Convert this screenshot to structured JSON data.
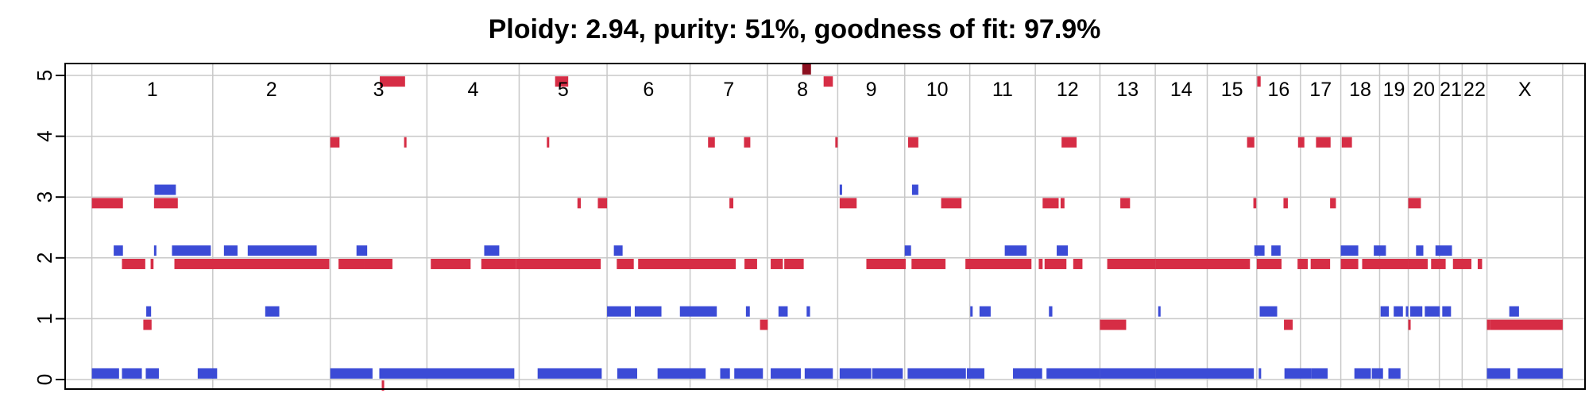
{
  "chart_data": {
    "type": "scatter",
    "title": "Ploidy: 2.94, purity: 51%, goodness of fit: 97.9%",
    "xlabel": "",
    "ylabel": "",
    "ylim": [
      0,
      5
    ],
    "yticks": [
      "0",
      "1",
      "2",
      "3",
      "4",
      "5"
    ],
    "grid": true,
    "chromosomes": [
      {
        "name": "1",
        "start": 0,
        "end": 249
      },
      {
        "name": "2",
        "start": 249,
        "end": 491
      },
      {
        "name": "3",
        "start": 491,
        "end": 690
      },
      {
        "name": "4",
        "start": 690,
        "end": 880
      },
      {
        "name": "5",
        "start": 880,
        "end": 1061
      },
      {
        "name": "6",
        "start": 1061,
        "end": 1232
      },
      {
        "name": "7",
        "start": 1232,
        "end": 1391
      },
      {
        "name": "8",
        "start": 1391,
        "end": 1536
      },
      {
        "name": "9",
        "start": 1536,
        "end": 1674
      },
      {
        "name": "10",
        "start": 1674,
        "end": 1808
      },
      {
        "name": "11",
        "start": 1808,
        "end": 1943
      },
      {
        "name": "12",
        "start": 1943,
        "end": 2076
      },
      {
        "name": "13",
        "start": 2076,
        "end": 2190
      },
      {
        "name": "14",
        "start": 2190,
        "end": 2297
      },
      {
        "name": "15",
        "start": 2297,
        "end": 2399
      },
      {
        "name": "16",
        "start": 2399,
        "end": 2489
      },
      {
        "name": "17",
        "start": 2489,
        "end": 2572
      },
      {
        "name": "18",
        "start": 2572,
        "end": 2652
      },
      {
        "name": "19",
        "start": 2652,
        "end": 2711
      },
      {
        "name": "20",
        "start": 2711,
        "end": 2775
      },
      {
        "name": "21",
        "start": 2775,
        "end": 2822
      },
      {
        "name": "22",
        "start": 2822,
        "end": 2873
      },
      {
        "name": "X",
        "start": 2873,
        "end": 3029
      }
    ],
    "series": [
      {
        "color": "#3b4bd6",
        "segments": [
          [
            0,
            56,
            0.1
          ],
          [
            62,
            103,
            0.1
          ],
          [
            111,
            138,
            0.1
          ],
          [
            218,
            258,
            0.1
          ],
          [
            491,
            578,
            0.1
          ],
          [
            592,
            870,
            0.1
          ],
          [
            918,
            1050,
            0.1
          ],
          [
            1082,
            1123,
            0.1
          ],
          [
            1165,
            1264,
            0.1
          ],
          [
            1294,
            1314,
            0.1
          ],
          [
            1323,
            1382,
            0.1
          ],
          [
            1398,
            1460,
            0.1
          ],
          [
            1468,
            1526,
            0.1
          ],
          [
            1540,
            1605,
            0.1
          ],
          [
            1607,
            1670,
            0.1
          ],
          [
            1680,
            1800,
            0.1
          ],
          [
            1802,
            1838,
            0.1
          ],
          [
            1897,
            1957,
            0.1
          ],
          [
            1966,
            2076,
            0.1
          ],
          [
            2076,
            2190,
            0.1
          ],
          [
            2190,
            2297,
            0.1
          ],
          [
            2297,
            2393,
            0.1
          ],
          [
            2403,
            2408,
            0.1
          ],
          [
            2456,
            2511,
            0.1
          ],
          [
            2511,
            2545,
            0.1
          ],
          [
            2600,
            2634,
            0.1
          ],
          [
            2636,
            2659,
            0.1
          ],
          [
            2670,
            2695,
            0.1
          ],
          [
            2873,
            2921,
            0.1
          ],
          [
            2936,
            3029,
            0.1
          ],
          [
            112,
            122,
            1.12
          ],
          [
            357,
            386,
            1.12
          ],
          [
            1061,
            1110,
            1.12
          ],
          [
            1118,
            1173,
            1.12
          ],
          [
            1211,
            1287,
            1.12
          ],
          [
            1347,
            1355,
            1.12
          ],
          [
            1414,
            1433,
            1.12
          ],
          [
            1472,
            1479,
            1.12
          ],
          [
            1809,
            1813,
            1.12
          ],
          [
            1828,
            1851,
            1.12
          ],
          [
            1971,
            1978,
            1.12
          ],
          [
            2196,
            2198,
            1.12
          ],
          [
            2405,
            2441,
            1.12
          ],
          [
            2654,
            2671,
            1.12
          ],
          [
            2681,
            2700,
            1.12
          ],
          [
            2706,
            2711,
            1.12
          ],
          [
            2715,
            2740,
            1.12
          ],
          [
            2745,
            2776,
            1.12
          ],
          [
            2781,
            2799,
            1.12
          ],
          [
            2919,
            2939,
            1.12
          ],
          [
            45,
            64,
            2.12
          ],
          [
            128,
            132,
            2.12
          ],
          [
            165,
            245,
            2.12
          ],
          [
            272,
            300,
            2.12
          ],
          [
            321,
            463,
            2.12
          ],
          [
            545,
            567,
            2.12
          ],
          [
            808,
            839,
            2.12
          ],
          [
            1075,
            1093,
            2.12
          ],
          [
            1674,
            1687,
            2.12
          ],
          [
            1880,
            1925,
            2.12
          ],
          [
            1987,
            2010,
            2.12
          ],
          [
            2394,
            2415,
            2.12
          ],
          [
            2429,
            2448,
            2.12
          ],
          [
            2572,
            2608,
            2.12
          ],
          [
            2640,
            2665,
            2.12
          ],
          [
            2727,
            2742,
            2.12
          ],
          [
            2767,
            2801,
            2.12
          ],
          [
            129,
            173,
            3.12
          ],
          [
            1540,
            1545,
            3.12
          ],
          [
            1689,
            1702,
            3.12
          ]
        ]
      },
      {
        "color": "#d62d45",
        "segments": [
          [
            597,
            602,
            -0.1
          ],
          [
            106,
            123,
            0.9
          ],
          [
            1376,
            1392,
            0.9
          ],
          [
            2076,
            2130,
            0.9
          ],
          [
            2455,
            2473,
            0.9
          ],
          [
            2711,
            2713,
            0.9
          ],
          [
            2873,
            2880,
            0.9
          ],
          [
            2880,
            3029,
            0.9
          ],
          [
            62,
            110,
            1.9
          ],
          [
            121,
            127,
            1.9
          ],
          [
            170,
            489,
            1.9
          ],
          [
            508,
            561,
            1.9
          ],
          [
            561,
            619,
            1.9
          ],
          [
            698,
            780,
            1.9
          ],
          [
            802,
            874,
            1.9
          ],
          [
            874,
            1048,
            1.9
          ],
          [
            1081,
            1116,
            1.9
          ],
          [
            1125,
            1326,
            1.9
          ],
          [
            1344,
            1370,
            1.9
          ],
          [
            1398,
            1423,
            1.9
          ],
          [
            1426,
            1466,
            1.9
          ],
          [
            1595,
            1676,
            1.9
          ],
          [
            1688,
            1758,
            1.9
          ],
          [
            1799,
            1935,
            1.9
          ],
          [
            1950,
            1958,
            1.9
          ],
          [
            1962,
            2007,
            1.9
          ],
          [
            2021,
            2040,
            1.9
          ],
          [
            2091,
            2190,
            1.9
          ],
          [
            2190,
            2297,
            1.9
          ],
          [
            2297,
            2385,
            1.9
          ],
          [
            2399,
            2450,
            1.9
          ],
          [
            2483,
            2504,
            1.9
          ],
          [
            2510,
            2550,
            1.9
          ],
          [
            2572,
            2608,
            1.9
          ],
          [
            2616,
            2711,
            1.9
          ],
          [
            2711,
            2751,
            1.9
          ],
          [
            2758,
            2788,
            1.9
          ],
          [
            2803,
            2841,
            1.9
          ],
          [
            2854,
            2863,
            1.9
          ],
          [
            0,
            64,
            2.9
          ],
          [
            128,
            177,
            2.9
          ],
          [
            1000,
            1007,
            2.9
          ],
          [
            1042,
            1061,
            2.9
          ],
          [
            1313,
            1321,
            2.9
          ],
          [
            1540,
            1575,
            2.9
          ],
          [
            1749,
            1791,
            2.9
          ],
          [
            1958,
            1991,
            2.9
          ],
          [
            1995,
            2003,
            2.9
          ],
          [
            2118,
            2138,
            2.9
          ],
          [
            2392,
            2398,
            2.9
          ],
          [
            2454,
            2463,
            2.9
          ],
          [
            2550,
            2562,
            2.9
          ],
          [
            2711,
            2737,
            2.9
          ],
          [
            491,
            510,
            3.9
          ],
          [
            643,
            648,
            3.9
          ],
          [
            937,
            940,
            3.9
          ],
          [
            1269,
            1283,
            3.9
          ],
          [
            1343,
            1356,
            3.9
          ],
          [
            1531,
            1534,
            3.9
          ],
          [
            1681,
            1702,
            3.9
          ],
          [
            1997,
            2028,
            3.9
          ],
          [
            2379,
            2394,
            3.9
          ],
          [
            2484,
            2497,
            3.9
          ],
          [
            2521,
            2551,
            3.9
          ],
          [
            2574,
            2595,
            3.9
          ],
          [
            593,
            645,
            4.9
          ],
          [
            954,
            981,
            4.9
          ],
          [
            1507,
            1526,
            4.9
          ],
          [
            2400,
            2407,
            4.9
          ]
        ]
      },
      {
        "color": "#8c1020",
        "segments": [
          [
            1463,
            1481,
            5.1
          ]
        ]
      }
    ]
  }
}
